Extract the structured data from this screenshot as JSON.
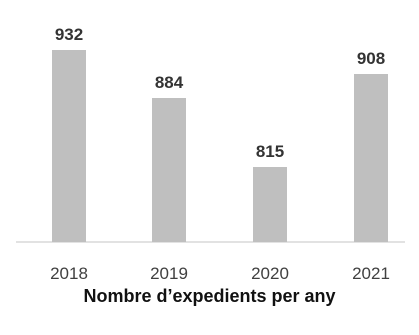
{
  "chart_data": {
    "type": "bar",
    "title": "Nombre d’expedients per any",
    "categories": [
      "2018",
      "2019",
      "2020",
      "2021"
    ],
    "values": [
      932,
      884,
      815,
      908
    ],
    "xlabel": "",
    "ylabel": "",
    "ylim": [
      740,
      940
    ],
    "grid": false,
    "legend": "none",
    "colors": {
      "bar": "#bfbfbf",
      "axis": "#d9d9d9",
      "label": "#333333"
    }
  }
}
